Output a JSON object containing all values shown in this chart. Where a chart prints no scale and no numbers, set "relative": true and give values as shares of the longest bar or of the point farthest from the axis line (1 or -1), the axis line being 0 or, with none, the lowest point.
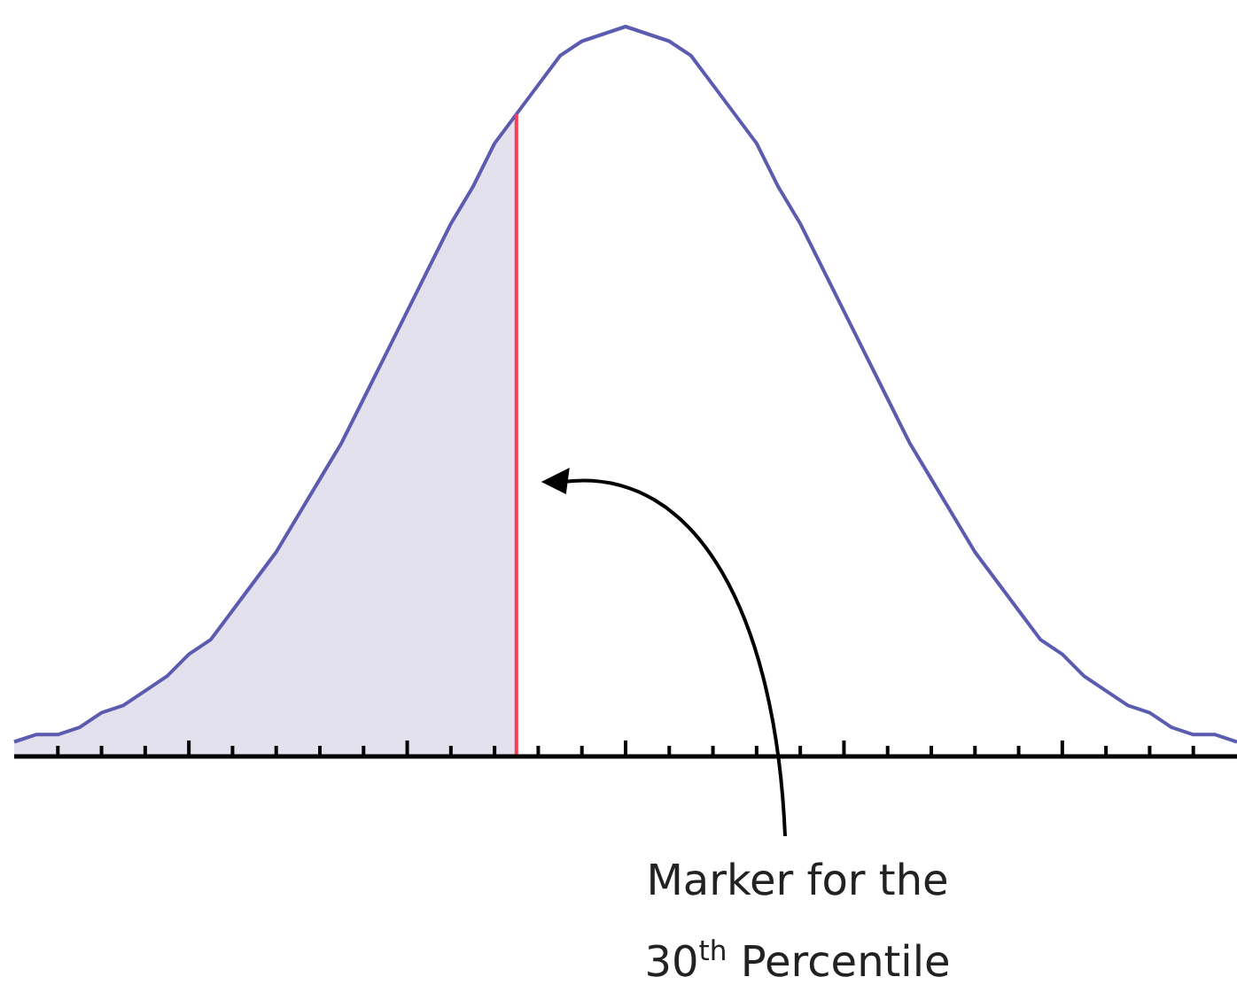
{
  "chart_data": {
    "type": "line",
    "relative": true,
    "categories": [
      null,
      null,
      null,
      null,
      null,
      null,
      null,
      null,
      null,
      null,
      null,
      null,
      null,
      null,
      null,
      null,
      null,
      null,
      null,
      null,
      null,
      null,
      null,
      null,
      null,
      null,
      null,
      null,
      null,
      null,
      null,
      null,
      null,
      null,
      null,
      null,
      null,
      null,
      null,
      null,
      null,
      null,
      null,
      null,
      null,
      null,
      null,
      null,
      null,
      null,
      null,
      null,
      null,
      null,
      null,
      null,
      null
    ],
    "series": [
      {
        "type": "area",
        "color": "#e4e1ee",
        "values": [
          0.02,
          0.03,
          0.03,
          0.04,
          0.06,
          0.07,
          0.09,
          0.11,
          0.14,
          0.16,
          0.2,
          0.24,
          0.28,
          0.33,
          0.38,
          0.43,
          0.49,
          0.55,
          0.61,
          0.67,
          0.73,
          0.78,
          0.84,
          0.88,
          null,
          null,
          null,
          null,
          null,
          null,
          null,
          null,
          null,
          null,
          null,
          null,
          null,
          null,
          null,
          null,
          null,
          null,
          null,
          null,
          null,
          null,
          null,
          null,
          null,
          null,
          null,
          null,
          null,
          null,
          null,
          null,
          null
        ]
      },
      {
        "type": "line",
        "color": "#5b5bb0",
        "values": [
          0.02,
          0.03,
          0.03,
          0.04,
          0.06,
          0.07,
          0.09,
          0.11,
          0.14,
          0.16,
          0.2,
          0.24,
          0.28,
          0.33,
          0.38,
          0.43,
          0.49,
          0.55,
          0.61,
          0.67,
          0.73,
          0.78,
          0.84,
          0.88,
          0.92,
          0.96,
          0.98,
          0.99,
          1,
          0.99,
          0.98,
          0.96,
          0.92,
          0.88,
          0.84,
          0.78,
          0.73,
          0.67,
          0.61,
          0.55,
          0.49,
          0.43,
          0.38,
          0.33,
          0.28,
          0.24,
          0.2,
          0.16,
          0.14,
          0.11,
          0.09,
          0.07,
          0.06,
          0.04,
          0.03,
          0.03,
          0.02
        ]
      }
    ],
    "ref_lines": [
      {
        "axis": "x",
        "color": "#ff3b4e"
      }
    ],
    "annotations": [
      "Marker for the\n30$^{th}$ Percentile"
    ]
  }
}
